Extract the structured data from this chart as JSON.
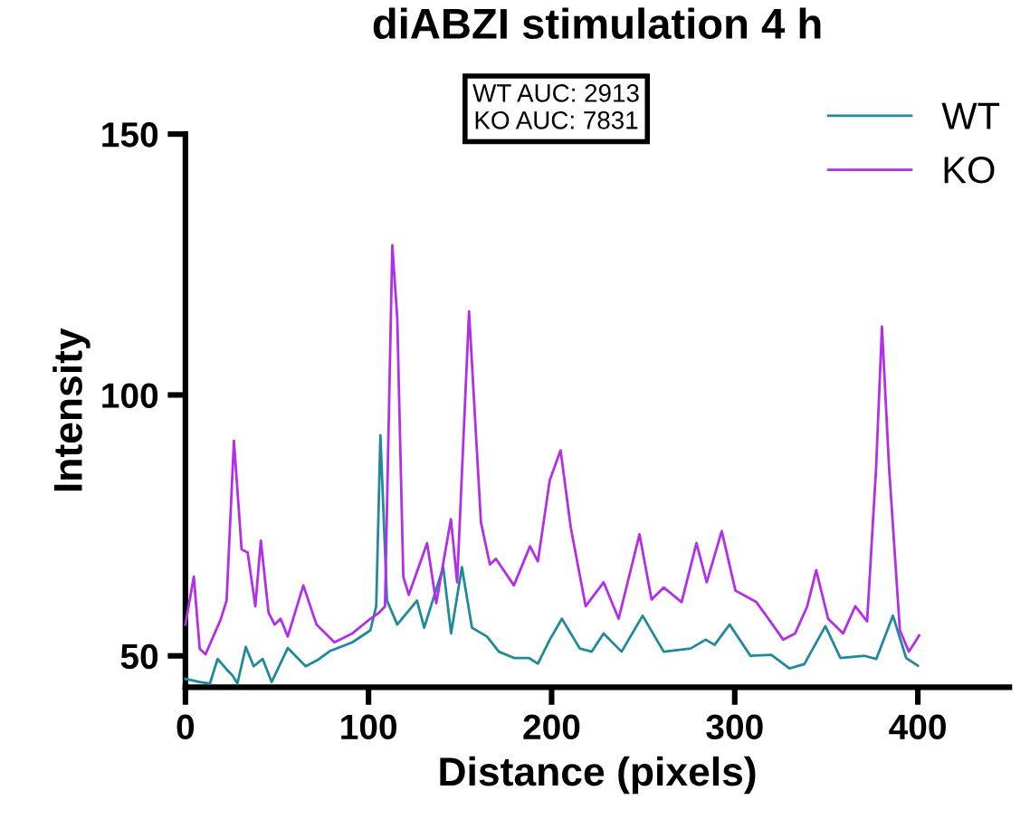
{
  "chart_data": {
    "type": "line",
    "title": "diABZI stimulation 4 h",
    "xlabel": "Distance (pixels)",
    "ylabel": "Intensity",
    "annotations": [
      "WT AUC: 2913\nKO AUC: 7831"
    ],
    "xlim": [
      0,
      450
    ],
    "xticks": [
      0,
      100,
      200,
      300,
      400
    ],
    "ylim": [
      44,
      150
    ],
    "yticks": [
      50,
      100,
      150
    ],
    "grid": false,
    "legend": "top right",
    "marker": "none",
    "line_style": "solid",
    "series": [
      {
        "name": "WT",
        "color": "#1f8a9c",
        "x": [
          0,
          7.8,
          13.4,
          17.6,
          22.5,
          25.8,
          28.4,
          33,
          37.3,
          42.2,
          47.1,
          55.9,
          65.7,
          72.2,
          78.8,
          91.2,
          101,
          104.2,
          106.5,
          110.1,
          115.7,
          126.5,
          130.4,
          140.8,
          145.1,
          151,
          156.5,
          164.7,
          171.2,
          179.4,
          187.6,
          192.5,
          199,
          205.6,
          215.4,
          221.9,
          228.4,
          238.2,
          249.7,
          261.2,
          275.9,
          284.1,
          289,
          297.2,
          308.6,
          320,
          329.9,
          338,
          349.5,
          357.7,
          370.8,
          377.3,
          386.4,
          393.6,
          400
        ],
        "values": [
          45.6,
          45,
          44.7,
          49.4,
          47.4,
          46.2,
          44.7,
          51.7,
          48,
          49.4,
          45,
          51.5,
          48,
          49.2,
          50.9,
          52.6,
          54.9,
          59.5,
          92.3,
          60.6,
          56,
          60.6,
          55.4,
          67,
          54.3,
          67,
          55.4,
          53.7,
          50.8,
          49.6,
          49.6,
          48.5,
          53.1,
          57.1,
          51.4,
          50.8,
          54.3,
          50.8,
          57.7,
          50.8,
          51.4,
          53.1,
          52.1,
          56,
          50,
          50.2,
          47.6,
          48.4,
          55.7,
          49.6,
          50,
          49.4,
          57.7,
          49.6,
          48.1
        ]
      },
      {
        "name": "KO",
        "color": "#b22ee8",
        "x": [
          0,
          4.6,
          7.8,
          11,
          19.3,
          22.5,
          26.5,
          30.7,
          34,
          38.2,
          41.2,
          45.4,
          48.7,
          52,
          55.9,
          64.4,
          71.6,
          81.4,
          91.2,
          101,
          105.9,
          109,
          113,
          115.7,
          119,
          122,
          132,
          137,
          145,
          148.4,
          154.9,
          161.4,
          166.3,
          169.6,
          179.4,
          188.2,
          192.5,
          199,
          204.9,
          210.5,
          218.6,
          228.4,
          236.6,
          248,
          254.6,
          261.2,
          271,
          279.1,
          284.7,
          292.9,
          300.4,
          311.8,
          318.4,
          326.5,
          333,
          339.6,
          344.5,
          351,
          359.2,
          365.8,
          372.3,
          377.2,
          380.4,
          384.3,
          390.2,
          395.1,
          398.4,
          400.7
        ],
        "values": [
          56,
          65.2,
          51.4,
          50.3,
          57,
          60.6,
          91.2,
          70.4,
          69.8,
          59.5,
          72.1,
          58.3,
          56,
          57.1,
          53.7,
          63.5,
          56,
          52.6,
          54.3,
          57.1,
          58.3,
          59.5,
          128.7,
          114.7,
          65.2,
          61.7,
          71.6,
          60.1,
          76.2,
          64.1,
          116,
          75.6,
          67.5,
          68.6,
          63.5,
          71,
          68.1,
          83.7,
          89.4,
          74.5,
          59.5,
          64.1,
          57.1,
          73.3,
          60.8,
          63.1,
          60.3,
          71.6,
          64.1,
          73.9,
          62.5,
          60.3,
          57.1,
          53.1,
          54.3,
          59.5,
          66.4,
          57.1,
          54.3,
          59.5,
          56.6,
          86,
          113.1,
          86,
          54.9,
          50.8,
          52.6,
          53.9
        ]
      }
    ]
  }
}
